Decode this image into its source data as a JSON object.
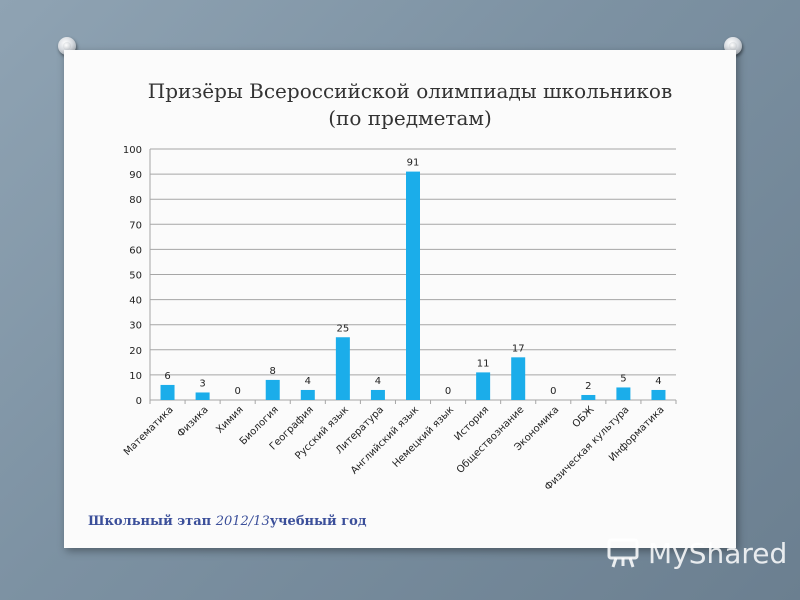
{
  "title": {
    "line1": "Призёры Всероссийской олимпиады школьников",
    "line2": "(по предметам)"
  },
  "footer": {
    "prefix": "Школьный этап",
    "year": "2012/13",
    "suffix": "учебный год"
  },
  "watermark": {
    "text": "MyShared"
  },
  "colors": {
    "bar": "#1badea",
    "grid": "#a6a6a6",
    "footer": "#3b4f9a"
  },
  "chart_data": {
    "type": "bar",
    "categories": [
      "Математика",
      "Физика",
      "Химия",
      "Биология",
      "География",
      "Русский язык",
      "Литература",
      "Английский язык",
      "Немецкий язык",
      "История",
      "Обществознание",
      "Экономика",
      "ОБЖ",
      "Физическая культура",
      "Информатика"
    ],
    "values": [
      6,
      3,
      0,
      8,
      4,
      25,
      4,
      91,
      0,
      11,
      17,
      0,
      2,
      5,
      4
    ],
    "ylim": [
      0,
      100
    ],
    "yticks": [
      0,
      10,
      20,
      30,
      40,
      50,
      60,
      70,
      80,
      90,
      100
    ],
    "grid": true,
    "data_labels": true,
    "legend": "none",
    "xlabel": "",
    "ylabel": ""
  }
}
